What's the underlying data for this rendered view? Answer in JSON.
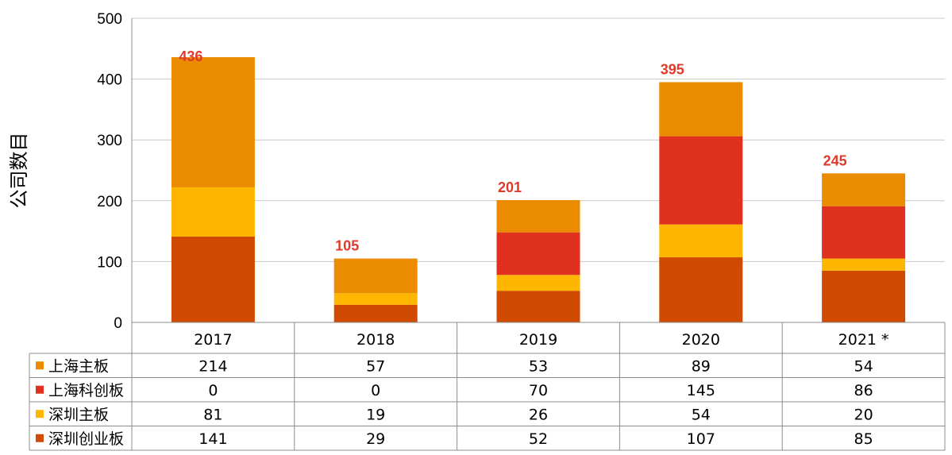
{
  "chart_data": {
    "type": "bar",
    "stacked": true,
    "title": "",
    "ylabel": "公司数目",
    "xlabel": "",
    "ylim": [
      0,
      500
    ],
    "yticks": [
      0,
      100,
      200,
      300,
      400,
      500
    ],
    "grid": true,
    "categories": [
      "2017",
      "2018",
      "2019",
      "2020",
      "2021 *"
    ],
    "series": [
      {
        "name": "深圳创业板",
        "color": "#d04a02",
        "values": [
          141,
          29,
          52,
          107,
          85
        ]
      },
      {
        "name": "深圳主板",
        "color": "#ffb600",
        "values": [
          81,
          19,
          26,
          54,
          20
        ]
      },
      {
        "name": "上海科创板",
        "color": "#e0301e",
        "values": [
          0,
          0,
          70,
          145,
          86
        ]
      },
      {
        "name": "上海主板",
        "color": "#eb8c00",
        "values": [
          214,
          57,
          53,
          89,
          54
        ]
      }
    ],
    "totals": [
      "436",
      "105",
      "201",
      "395",
      "245"
    ],
    "table_rows": [
      {
        "name": "上海主板",
        "color": "#eb8c00",
        "values": [
          "214",
          "57",
          "53",
          "89",
          "54"
        ]
      },
      {
        "name": "上海科创板",
        "color": "#e0301e",
        "values": [
          "0",
          "0",
          "70",
          "145",
          "86"
        ]
      },
      {
        "name": "深圳主板",
        "color": "#ffb600",
        "values": [
          "81",
          "19",
          "26",
          "54",
          "20"
        ]
      },
      {
        "name": "深圳创业板",
        "color": "#d04a02",
        "values": [
          "141",
          "29",
          "52",
          "107",
          "85"
        ]
      }
    ],
    "colors": {
      "total_label": "#e03a2a",
      "grid": "#c8c8c8",
      "table_border": "#8c8c8c"
    }
  }
}
